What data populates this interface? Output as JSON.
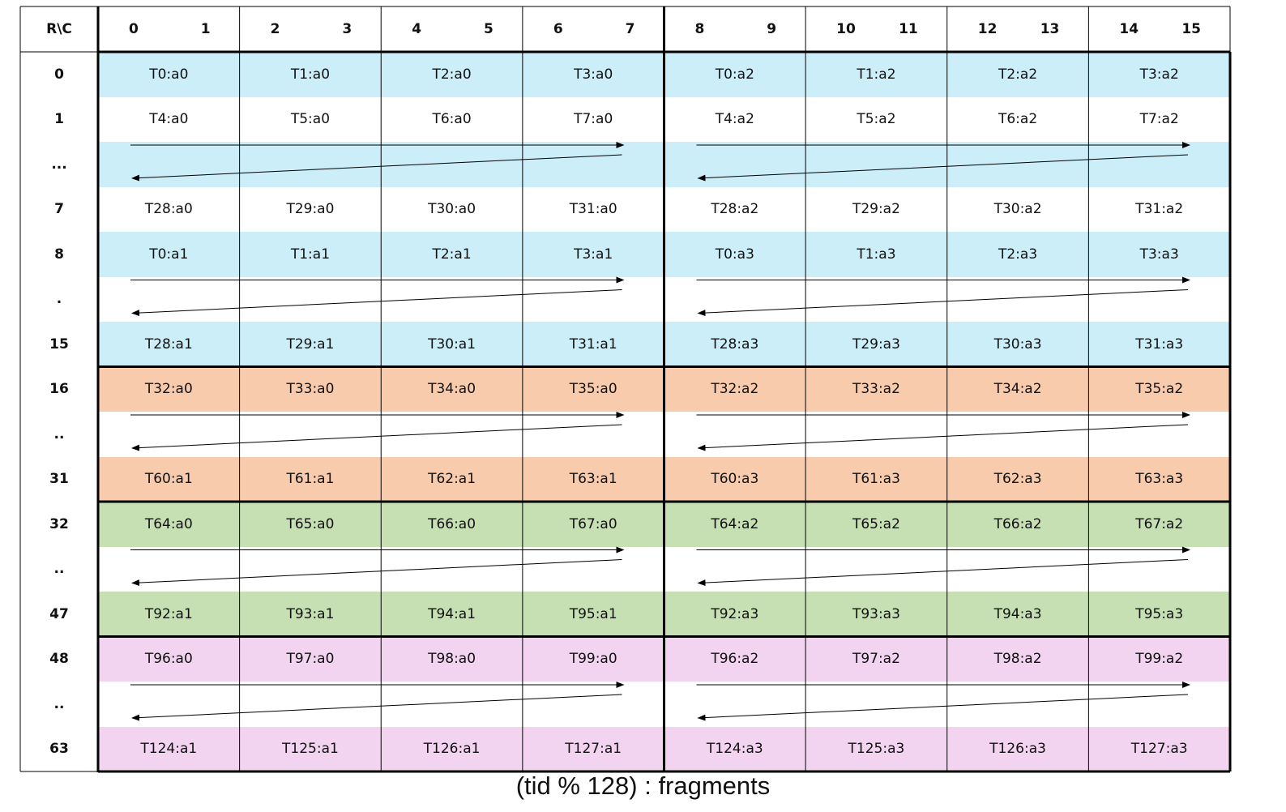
{
  "corner_label": "R\\C",
  "column_headers": [
    [
      "0",
      "1"
    ],
    [
      "2",
      "3"
    ],
    [
      "4",
      "5"
    ],
    [
      "6",
      "7"
    ],
    [
      "8",
      "9"
    ],
    [
      "10",
      "11"
    ],
    [
      "12",
      "13"
    ],
    [
      "14",
      "15"
    ]
  ],
  "colors": {
    "blue": "#cbeef9",
    "salmon": "#f8cbad",
    "green": "#c6e0b4",
    "pink": "#f2d3f0",
    "white": "#ffffff"
  },
  "rows": [
    {
      "label": "0",
      "color": "blue",
      "cells": [
        "T0:a0",
        "T1:a0",
        "T2:a0",
        "T3:a0",
        "T0:a2",
        "T1:a2",
        "T2:a2",
        "T3:a2"
      ]
    },
    {
      "label": "1",
      "color": "white",
      "cells": [
        "T4:a0",
        "T5:a0",
        "T6:a0",
        "T7:a0",
        "T4:a2",
        "T5:a2",
        "T6:a2",
        "T7:a2"
      ]
    },
    {
      "label": "...",
      "color": "blue",
      "arrows": true,
      "cells": []
    },
    {
      "label": "7",
      "color": "white",
      "cells": [
        "T28:a0",
        "T29:a0",
        "T30:a0",
        "T31:a0",
        "T28:a2",
        "T29:a2",
        "T30:a2",
        "T31:a2"
      ]
    },
    {
      "label": "8",
      "color": "blue",
      "cells": [
        "T0:a1",
        "T1:a1",
        "T2:a1",
        "T3:a1",
        "T0:a3",
        "T1:a3",
        "T2:a3",
        "T3:a3"
      ]
    },
    {
      "label": ".",
      "color": "white",
      "arrows": true,
      "cells": []
    },
    {
      "label": "15",
      "color": "blue",
      "cells": [
        "T28:a1",
        "T29:a1",
        "T30:a1",
        "T31:a1",
        "T28:a3",
        "T29:a3",
        "T30:a3",
        "T31:a3"
      ]
    },
    {
      "label": "16",
      "color": "salmon",
      "cells": [
        "T32:a0",
        "T33:a0",
        "T34:a0",
        "T35:a0",
        "T32:a2",
        "T33:a2",
        "T34:a2",
        "T35:a2"
      ]
    },
    {
      "label": "..",
      "color": "white",
      "arrows": true,
      "cells": []
    },
    {
      "label": "31",
      "color": "salmon",
      "cells": [
        "T60:a1",
        "T61:a1",
        "T62:a1",
        "T63:a1",
        "T60:a3",
        "T61:a3",
        "T62:a3",
        "T63:a3"
      ]
    },
    {
      "label": "32",
      "color": "green",
      "cells": [
        "T64:a0",
        "T65:a0",
        "T66:a0",
        "T67:a0",
        "T64:a2",
        "T65:a2",
        "T66:a2",
        "T67:a2"
      ]
    },
    {
      "label": "..",
      "color": "white",
      "arrows": true,
      "cells": []
    },
    {
      "label": "47",
      "color": "green",
      "cells": [
        "T92:a1",
        "T93:a1",
        "T94:a1",
        "T95:a1",
        "T92:a3",
        "T93:a3",
        "T94:a3",
        "T95:a3"
      ]
    },
    {
      "label": "48",
      "color": "pink",
      "cells": [
        "T96:a0",
        "T97:a0",
        "T98:a0",
        "T99:a0",
        "T96:a2",
        "T97:a2",
        "T98:a2",
        "T99:a2"
      ]
    },
    {
      "label": "..",
      "color": "white",
      "arrows": true,
      "cells": []
    },
    {
      "label": "63",
      "color": "pink",
      "cells": [
        "T124:a1",
        "T125:a1",
        "T126:a1",
        "T127:a1",
        "T124:a3",
        "T125:a3",
        "T126:a3",
        "T127:a3"
      ]
    }
  ],
  "caption": "(tid % 128) : fragments"
}
